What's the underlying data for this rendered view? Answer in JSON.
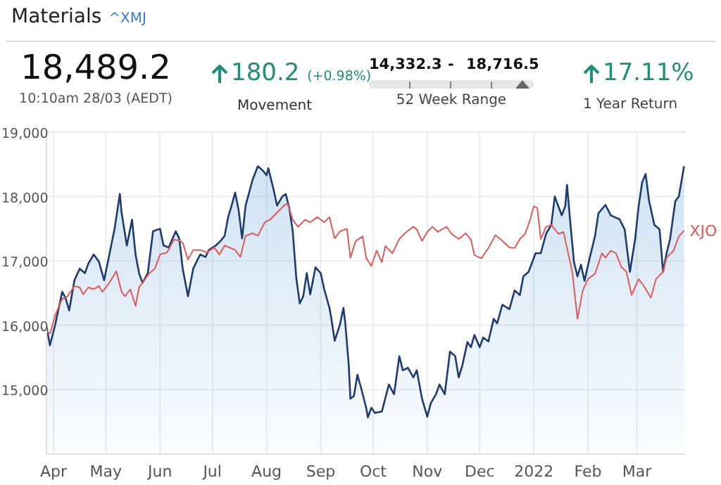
{
  "chart_data": {
    "type": "area",
    "title": "Materials",
    "subtitle": "^XMJ",
    "annotations": [
      "18,489.2",
      "10:10am 28/03 (AEDT)",
      "180.2",
      "(+0.98%)",
      "Movement",
      "14,332.3",
      "-",
      "18,716.5",
      "52 Week Range",
      "17.11%",
      "1 Year Return"
    ],
    "xlim": [
      "2021-03-28",
      "2022-03-29"
    ],
    "xticks": [
      {
        "value": "2021-04-01",
        "label": "Apr"
      },
      {
        "value": "2021-05-01",
        "label": "May"
      },
      {
        "value": "2021-06-01",
        "label": "Jun"
      },
      {
        "value": "2021-07-01",
        "label": "Jul"
      },
      {
        "value": "2021-08-01",
        "label": "Aug"
      },
      {
        "value": "2021-09-01",
        "label": "Sep"
      },
      {
        "value": "2021-10-01",
        "label": "Oct"
      },
      {
        "value": "2021-11-01",
        "label": "Nov"
      },
      {
        "value": "2021-12-01",
        "label": "Dec"
      },
      {
        "value": "2022-01-01",
        "label": "2022"
      },
      {
        "value": "2022-02-01",
        "label": "Feb"
      },
      {
        "value": "2022-03-01",
        "label": "Mar"
      }
    ],
    "ylim": [
      14000,
      19000
    ],
    "yticks": [
      {
        "value": 15000,
        "label": "15,000"
      },
      {
        "value": 16000,
        "label": "16,000"
      },
      {
        "value": 17000,
        "label": "17,000"
      },
      {
        "value": 18000,
        "label": "18,000"
      },
      {
        "value": 19000,
        "label": "19,000"
      }
    ],
    "grid": true,
    "legend": false,
    "marker": "none",
    "series": [
      {
        "color": "#1d3b6e",
        "x": [
          "2021-03-28",
          "2021-03-30",
          "2021-04-02",
          "2021-04-06",
          "2021-04-08",
          "2021-04-10",
          "2021-04-13",
          "2021-04-16",
          "2021-04-19",
          "2021-04-21",
          "2021-04-24",
          "2021-04-27",
          "2021-04-30",
          "2021-05-03",
          "2021-05-06",
          "2021-05-09",
          "2021-05-10",
          "2021-05-13",
          "2021-05-16",
          "2021-05-18",
          "2021-05-20",
          "2021-05-22",
          "2021-05-25",
          "2021-05-28",
          "2021-06-01",
          "2021-06-03",
          "2021-06-06",
          "2021-06-10",
          "2021-06-12",
          "2021-06-14",
          "2021-06-17",
          "2021-06-20",
          "2021-06-24",
          "2021-06-27",
          "2021-06-29",
          "2021-07-03",
          "2021-07-06",
          "2021-07-08",
          "2021-07-10",
          "2021-07-12",
          "2021-07-14",
          "2021-07-16",
          "2021-07-18",
          "2021-07-20",
          "2021-07-24",
          "2021-07-27",
          "2021-07-30",
          "2021-08-01",
          "2021-08-02",
          "2021-08-05",
          "2021-08-07",
          "2021-08-10",
          "2021-08-12",
          "2021-08-14",
          "2021-08-16",
          "2021-08-18",
          "2021-08-20",
          "2021-08-22",
          "2021-08-24",
          "2021-08-26",
          "2021-08-29",
          "2021-09-01",
          "2021-09-03",
          "2021-09-06",
          "2021-09-07",
          "2021-09-09",
          "2021-09-12",
          "2021-09-14",
          "2021-09-15",
          "2021-09-17",
          "2021-09-18",
          "2021-09-20",
          "2021-09-22",
          "2021-09-24",
          "2021-09-27",
          "2021-09-28",
          "2021-09-30",
          "2021-10-02",
          "2021-10-06",
          "2021-10-10",
          "2021-10-13",
          "2021-10-16",
          "2021-10-18",
          "2021-10-21",
          "2021-10-24",
          "2021-10-26",
          "2021-10-29",
          "2021-11-01",
          "2021-11-03",
          "2021-11-06",
          "2021-11-08",
          "2021-11-11",
          "2021-11-14",
          "2021-11-17",
          "2021-11-19",
          "2021-11-21",
          "2021-11-24",
          "2021-11-26",
          "2021-11-28",
          "2021-12-01",
          "2021-12-03",
          "2021-12-06",
          "2021-12-09",
          "2021-12-11",
          "2021-12-14",
          "2021-12-18",
          "2021-12-21",
          "2021-12-24",
          "2021-12-26",
          "2021-12-29",
          "2022-01-02",
          "2022-01-05",
          "2022-01-08",
          "2022-01-11",
          "2022-01-13",
          "2022-01-15",
          "2022-01-17",
          "2022-01-19",
          "2022-01-20",
          "2022-01-22",
          "2022-01-24",
          "2022-01-26",
          "2022-01-28",
          "2022-01-30",
          "2022-02-02",
          "2022-02-05",
          "2022-02-07",
          "2022-02-11",
          "2022-02-14",
          "2022-02-17",
          "2022-02-19",
          "2022-02-22",
          "2022-02-25",
          "2022-02-28",
          "2022-03-02",
          "2022-03-04",
          "2022-03-06",
          "2022-03-08",
          "2022-03-11",
          "2022-03-14",
          "2022-03-16",
          "2022-03-18",
          "2022-03-20",
          "2022-03-23",
          "2022-03-25",
          "2022-03-28"
        ],
        "values": [
          15980,
          15690,
          16010,
          16520,
          16420,
          16230,
          16700,
          16880,
          16810,
          16960,
          17100,
          16990,
          16700,
          17100,
          17500,
          18040,
          17750,
          17240,
          17640,
          17100,
          16810,
          16660,
          16810,
          17460,
          17500,
          17240,
          17210,
          17460,
          17350,
          16880,
          16450,
          16880,
          17100,
          17060,
          17170,
          17240,
          17320,
          17390,
          17680,
          17860,
          18060,
          17790,
          17350,
          17860,
          18260,
          18470,
          18400,
          18330,
          18440,
          18110,
          17860,
          18000,
          18040,
          17820,
          17460,
          16740,
          16340,
          16450,
          16810,
          16480,
          16900,
          16810,
          16560,
          16270,
          16120,
          15760,
          16010,
          16270,
          16050,
          15400,
          14860,
          14900,
          15230,
          15040,
          14720,
          14570,
          14720,
          14640,
          14660,
          15080,
          14930,
          15520,
          15300,
          15340,
          15190,
          15300,
          14860,
          14580,
          14790,
          14930,
          15080,
          14930,
          15590,
          15520,
          15190,
          15370,
          15740,
          15660,
          15850,
          15660,
          15810,
          15750,
          16100,
          16030,
          16320,
          16250,
          16540,
          16470,
          16760,
          16830,
          17120,
          17120,
          17420,
          17560,
          18000,
          17850,
          17710,
          17850,
          18180,
          17560,
          16980,
          16760,
          16940,
          16690,
          17050,
          17380,
          17740,
          17870,
          17710,
          17670,
          17650,
          17490,
          16830,
          17340,
          17850,
          18220,
          18350,
          17930,
          17560,
          17490,
          16830,
          17120,
          17340,
          17930,
          18000,
          18470
        ]
      },
      {
        "type": "line",
        "name": "XJO",
        "color": "#e05a5a",
        "x": [
          "2021-03-28",
          "2021-03-30",
          "2021-04-02",
          "2021-04-06",
          "2021-04-09",
          "2021-04-13",
          "2021-04-16",
          "2021-04-18",
          "2021-04-21",
          "2021-04-24",
          "2021-04-27",
          "2021-04-29",
          "2021-05-03",
          "2021-05-07",
          "2021-05-10",
          "2021-05-12",
          "2021-05-15",
          "2021-05-18",
          "2021-05-20",
          "2021-05-23",
          "2021-05-26",
          "2021-05-29",
          "2021-06-01",
          "2021-06-05",
          "2021-06-09",
          "2021-06-12",
          "2021-06-14",
          "2021-06-17",
          "2021-06-20",
          "2021-06-24",
          "2021-06-28",
          "2021-07-02",
          "2021-07-05",
          "2021-07-08",
          "2021-07-14",
          "2021-07-17",
          "2021-07-20",
          "2021-07-24",
          "2021-07-27",
          "2021-07-31",
          "2021-08-03",
          "2021-08-07",
          "2021-08-11",
          "2021-08-13",
          "2021-08-16",
          "2021-08-19",
          "2021-08-23",
          "2021-08-26",
          "2021-08-30",
          "2021-09-03",
          "2021-09-06",
          "2021-09-09",
          "2021-09-12",
          "2021-09-16",
          "2021-09-18",
          "2021-09-21",
          "2021-09-25",
          "2021-09-27",
          "2021-09-30",
          "2021-10-03",
          "2021-10-06",
          "2021-10-08",
          "2021-10-12",
          "2021-10-16",
          "2021-10-20",
          "2021-10-24",
          "2021-10-26",
          "2021-10-29",
          "2021-11-01",
          "2021-11-04",
          "2021-11-07",
          "2021-11-12",
          "2021-11-15",
          "2021-11-19",
          "2021-11-23",
          "2021-11-26",
          "2021-11-28",
          "2021-12-02",
          "2021-12-06",
          "2021-12-10",
          "2021-12-14",
          "2021-12-18",
          "2021-12-21",
          "2021-12-24",
          "2021-12-27",
          "2021-12-30",
          "2022-01-01",
          "2022-01-03",
          "2022-01-05",
          "2022-01-08",
          "2022-01-11",
          "2022-01-15",
          "2022-01-18",
          "2022-01-20",
          "2022-01-23",
          "2022-01-26",
          "2022-01-29",
          "2022-02-01",
          "2022-02-05",
          "2022-02-09",
          "2022-02-11",
          "2022-02-14",
          "2022-02-17",
          "2022-02-20",
          "2022-02-23",
          "2022-02-26",
          "2022-03-02",
          "2022-03-05",
          "2022-03-09",
          "2022-03-12",
          "2022-03-16",
          "2022-03-18",
          "2022-03-22",
          "2022-03-25",
          "2022-03-28"
        ],
        "values": [
          15910,
          15870,
          16160,
          16410,
          16450,
          16610,
          16590,
          16480,
          16590,
          16560,
          16610,
          16520,
          16660,
          16840,
          16520,
          16450,
          16560,
          16300,
          16590,
          16700,
          16810,
          16880,
          17100,
          17130,
          17330,
          17320,
          17280,
          17020,
          17170,
          17170,
          17130,
          17210,
          17100,
          17240,
          17170,
          17060,
          17390,
          17430,
          17390,
          17600,
          17640,
          17750,
          17860,
          17890,
          17640,
          17530,
          17640,
          17600,
          17680,
          17600,
          17680,
          17350,
          17460,
          17500,
          17050,
          17310,
          17380,
          17050,
          16920,
          17160,
          16980,
          17230,
          17120,
          17340,
          17450,
          17530,
          17490,
          17310,
          17450,
          17530,
          17450,
          17530,
          17420,
          17340,
          17430,
          17330,
          17090,
          17040,
          17200,
          17400,
          17310,
          17210,
          17200,
          17340,
          17420,
          17650,
          17850,
          17820,
          17340,
          17530,
          17560,
          17420,
          17450,
          17200,
          16830,
          16100,
          16540,
          16720,
          16800,
          17120,
          17050,
          17160,
          17120,
          16910,
          16830,
          16470,
          16720,
          16610,
          16430,
          16720,
          16830,
          17050,
          17160,
          17380,
          17470
        ]
      }
    ]
  }
}
